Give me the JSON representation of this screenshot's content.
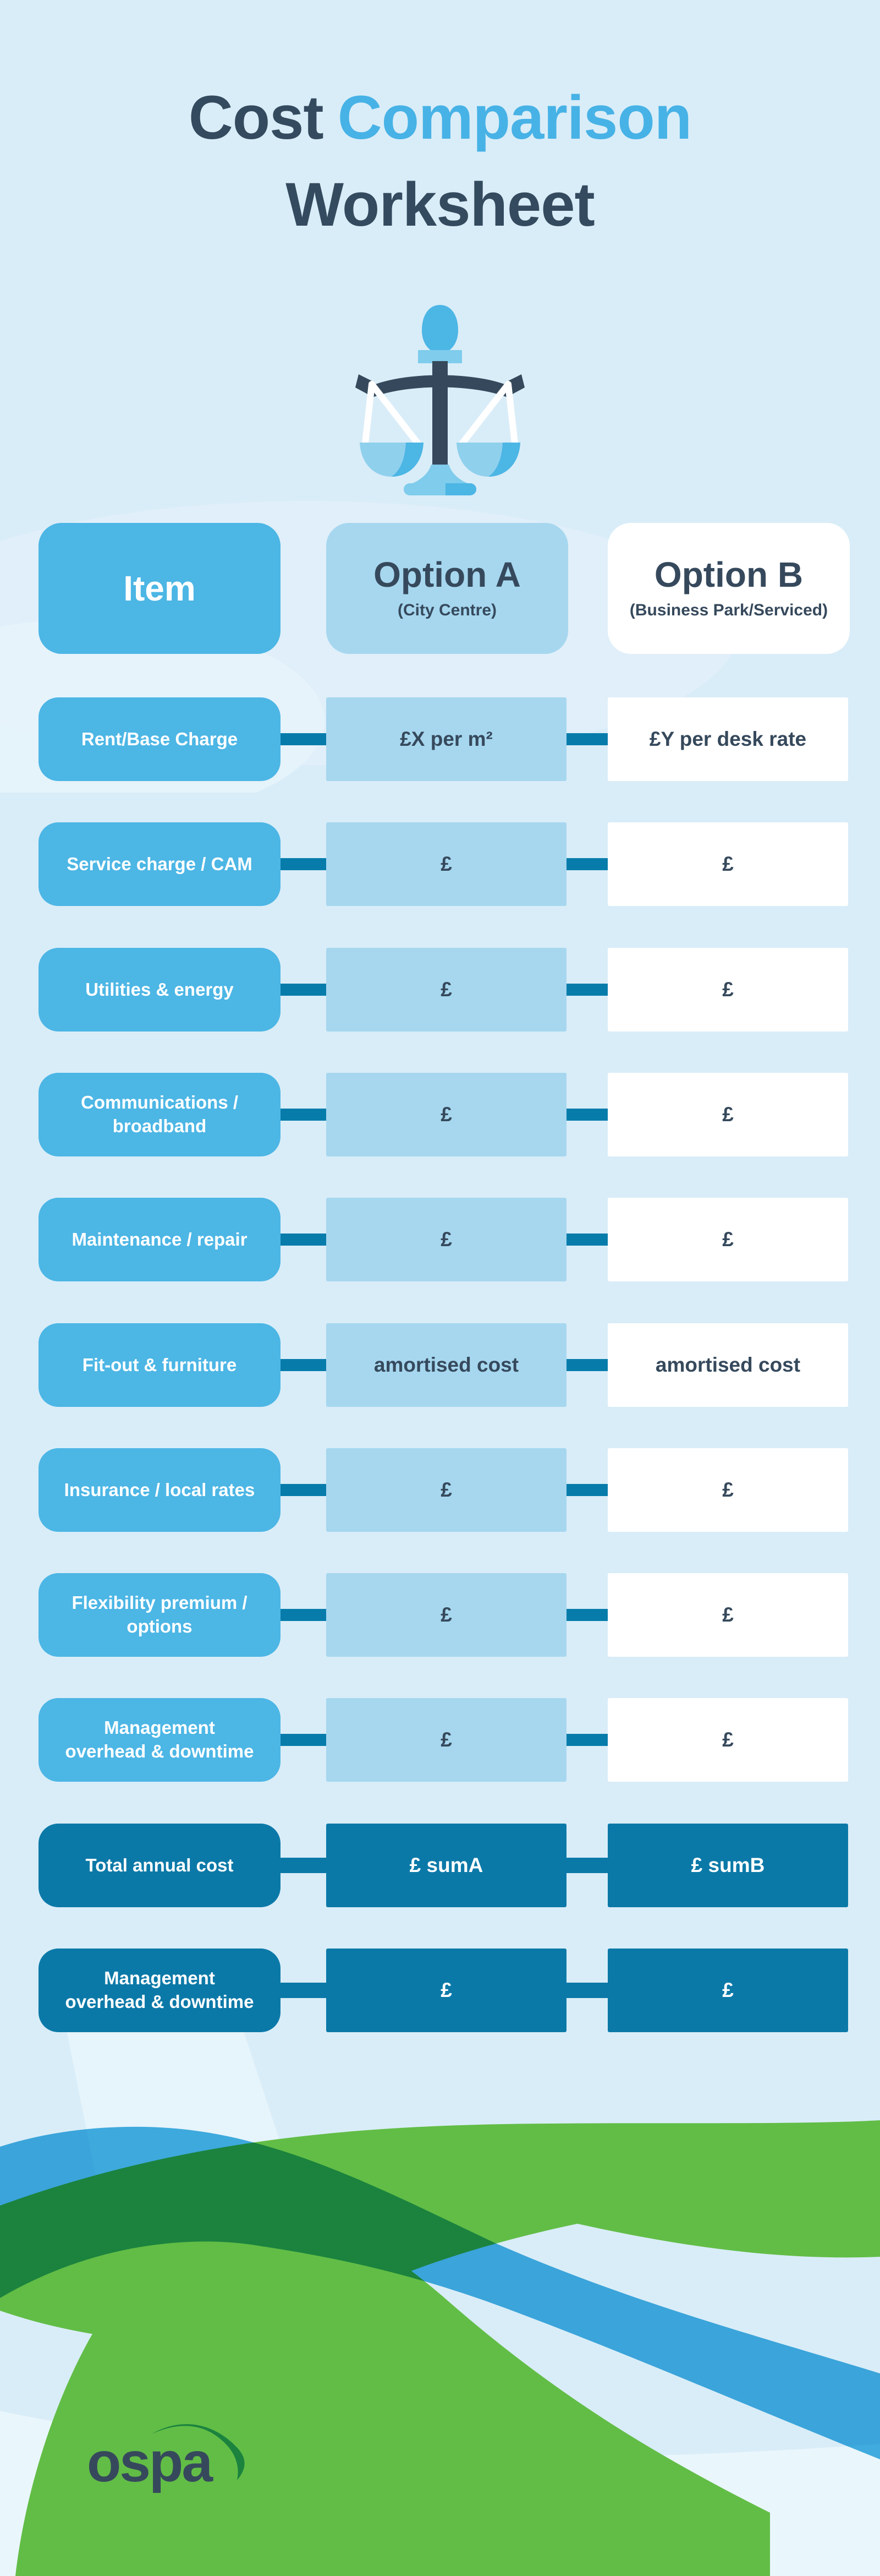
{
  "title": {
    "word1": "Cost",
    "word2": "Comparison",
    "line2": "Worksheet"
  },
  "scale_icon": "balance-scale-icon",
  "header": {
    "item_label": "Item",
    "option_a": {
      "label": "Option A",
      "subtitle": "(City Centre)"
    },
    "option_b": {
      "label": "Option B",
      "subtitle": "(Business Park/Serviced)"
    }
  },
  "rows": [
    {
      "item": "Rent/Base Charge",
      "option_a": "£X per m²",
      "option_b": "£Y per desk rate",
      "variant": "light"
    },
    {
      "item": "Service charge / CAM",
      "option_a": "£",
      "option_b": "£",
      "variant": "light"
    },
    {
      "item": "Utilities & energy",
      "option_a": "£",
      "option_b": "£",
      "variant": "light"
    },
    {
      "item": "Communications /\nbroadband",
      "option_a": "£",
      "option_b": "£",
      "variant": "light"
    },
    {
      "item": "Maintenance / repair",
      "option_a": "£",
      "option_b": "£",
      "variant": "light"
    },
    {
      "item": "Fit-out & furniture",
      "option_a": "amortised cost",
      "option_b": "amortised cost",
      "variant": "light"
    },
    {
      "item": "Insurance / local rates",
      "option_a": "£",
      "option_b": "£",
      "variant": "light"
    },
    {
      "item": "Flexibility premium /\noptions",
      "option_a": "£",
      "option_b": "£",
      "variant": "light"
    },
    {
      "item": "Management\noverhead & downtime",
      "option_a": "£",
      "option_b": "£",
      "variant": "light"
    },
    {
      "item": "Total annual cost",
      "option_a": "£ sumA",
      "option_b": "£ sumB",
      "variant": "dark"
    },
    {
      "item": "Management\noverhead & downtime",
      "option_a": "£",
      "option_b": "£",
      "variant": "dark"
    }
  ],
  "logo": {
    "text": "ospa"
  },
  "colors": {
    "background": "#d9edf8",
    "item_card": "#4cb6e5",
    "option_a_cell": "#a6d7ef",
    "option_b_cell": "#ffffff",
    "connector": "#077cab",
    "dark_row": "#0b79a8",
    "heading_dark": "#344a5e",
    "heading_accent": "#47b2e6",
    "text_dark": "#36495c",
    "wave_green": "#62bd46",
    "wave_dark_green": "#1d8a3d",
    "wave_blue": "#45b1e1"
  }
}
